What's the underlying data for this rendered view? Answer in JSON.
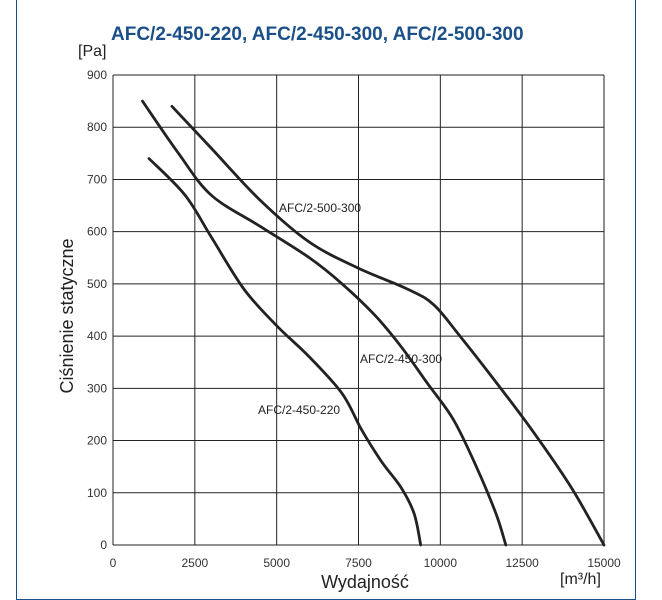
{
  "chart_data": {
    "type": "line",
    "title": "AFC/2-450-220, AFC/2-450-300, AFC/2-500-300",
    "xlabel": "Wydajność",
    "x_unit": "[m³/h]",
    "ylabel": "Ciśnienie statyczne",
    "y_unit": "[Pa]",
    "xlim": [
      0,
      15000
    ],
    "ylim": [
      0,
      900
    ],
    "x_ticks": [
      "0",
      "2500",
      "5000",
      "7500",
      "10000",
      "12500",
      "15000"
    ],
    "y_ticks": [
      "0",
      "100",
      "200",
      "300",
      "400",
      "500",
      "600",
      "700",
      "800",
      "900"
    ],
    "grid": true,
    "series": [
      {
        "name": "AFC/2-500-300",
        "points": [
          [
            1800,
            840
          ],
          [
            3000,
            760
          ],
          [
            4500,
            660
          ],
          [
            6000,
            580
          ],
          [
            7500,
            530
          ],
          [
            9000,
            490
          ],
          [
            9800,
            460
          ],
          [
            10600,
            400
          ],
          [
            11600,
            320
          ],
          [
            12800,
            220
          ],
          [
            14000,
            110
          ],
          [
            15000,
            0
          ]
        ]
      },
      {
        "name": "AFC/2-450-300",
        "points": [
          [
            900,
            850
          ],
          [
            2000,
            750
          ],
          [
            3000,
            670
          ],
          [
            4500,
            610
          ],
          [
            6000,
            550
          ],
          [
            7000,
            500
          ],
          [
            8000,
            440
          ],
          [
            8800,
            380
          ],
          [
            9600,
            310
          ],
          [
            10400,
            240
          ],
          [
            11100,
            150
          ],
          [
            11700,
            60
          ],
          [
            12000,
            0
          ]
        ]
      },
      {
        "name": "AFC/2-450-220",
        "points": [
          [
            1100,
            740
          ],
          [
            2200,
            670
          ],
          [
            3000,
            590
          ],
          [
            4000,
            490
          ],
          [
            5000,
            420
          ],
          [
            6000,
            360
          ],
          [
            7000,
            290
          ],
          [
            7600,
            220
          ],
          [
            8200,
            160
          ],
          [
            8800,
            110
          ],
          [
            9200,
            60
          ],
          [
            9400,
            0
          ]
        ]
      }
    ]
  },
  "curve_labels": [
    "AFC/2-500-300",
    "AFC/2-450-300",
    "AFC/2-450-220"
  ]
}
